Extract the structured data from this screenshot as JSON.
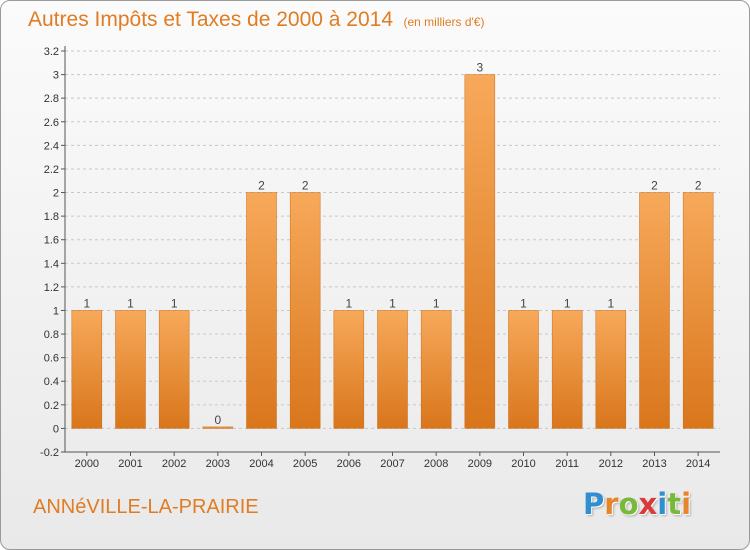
{
  "title": "Autres Impôts et Taxes de 2000 à 2014",
  "unit_note": "(en milliers d'€)",
  "commune": "ANNéVILLE-LA-PRAIRIE",
  "logo": {
    "letters": [
      "P",
      "r",
      "o",
      "x",
      "i",
      "t",
      "i"
    ],
    "colors": [
      "#2f8fd0",
      "#e8842a",
      "#78b83a",
      "#d93b3b",
      "#2f8fd0",
      "#78b83a",
      "#e8842a"
    ]
  },
  "colors": {
    "accent": "#e07c23",
    "bar_light": "#f7a95a",
    "bar_dark": "#d9761c",
    "grid": "#c8c8c8"
  },
  "chart_data": {
    "type": "bar",
    "categories": [
      "2000",
      "2001",
      "2002",
      "2003",
      "2004",
      "2005",
      "2006",
      "2007",
      "2008",
      "2009",
      "2010",
      "2011",
      "2012",
      "2013",
      "2014"
    ],
    "values": [
      1,
      1,
      1,
      0,
      2,
      2,
      1,
      1,
      1,
      3,
      1,
      1,
      1,
      2,
      2
    ],
    "data_labels": [
      "1",
      "1",
      "1",
      "0",
      "2",
      "2",
      "1",
      "1",
      "1",
      "3",
      "1",
      "1",
      "1",
      "2",
      "2"
    ],
    "y_ticks": [
      "-0.2",
      "0",
      "0.2",
      "0.4",
      "0.6",
      "0.8",
      "1",
      "1.2",
      "1.4",
      "1.6",
      "1.8",
      "2",
      "2.2",
      "2.4",
      "2.6",
      "2.8",
      "3",
      "3.2"
    ],
    "ylim": [
      -0.2,
      3.2
    ],
    "grid": "horizontal dashed",
    "legend": "none"
  }
}
